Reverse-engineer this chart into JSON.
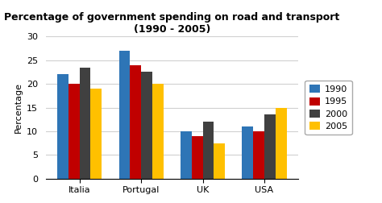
{
  "title": "Percentage of government spending on road and transport\n(1990 - 2005)",
  "ylabel": "Percentage",
  "categories": [
    "Italia",
    "Portugal",
    "UK",
    "USA"
  ],
  "years": [
    "1990",
    "1995",
    "2000",
    "2005"
  ],
  "colors": [
    "#2e75b6",
    "#c00000",
    "#404040",
    "#ffc000"
  ],
  "values": {
    "1990": [
      22,
      27,
      10,
      11
    ],
    "1995": [
      20,
      24,
      9,
      10
    ],
    "2000": [
      23.5,
      22.5,
      12,
      13.5
    ],
    "2005": [
      19,
      20,
      7.5,
      15
    ]
  },
  "ylim": [
    0,
    30
  ],
  "yticks": [
    0,
    5,
    10,
    15,
    20,
    25,
    30
  ],
  "bar_width": 0.18,
  "background_color": "#ffffff",
  "title_fontsize": 9,
  "axis_fontsize": 8,
  "tick_fontsize": 8,
  "legend_fontsize": 8
}
